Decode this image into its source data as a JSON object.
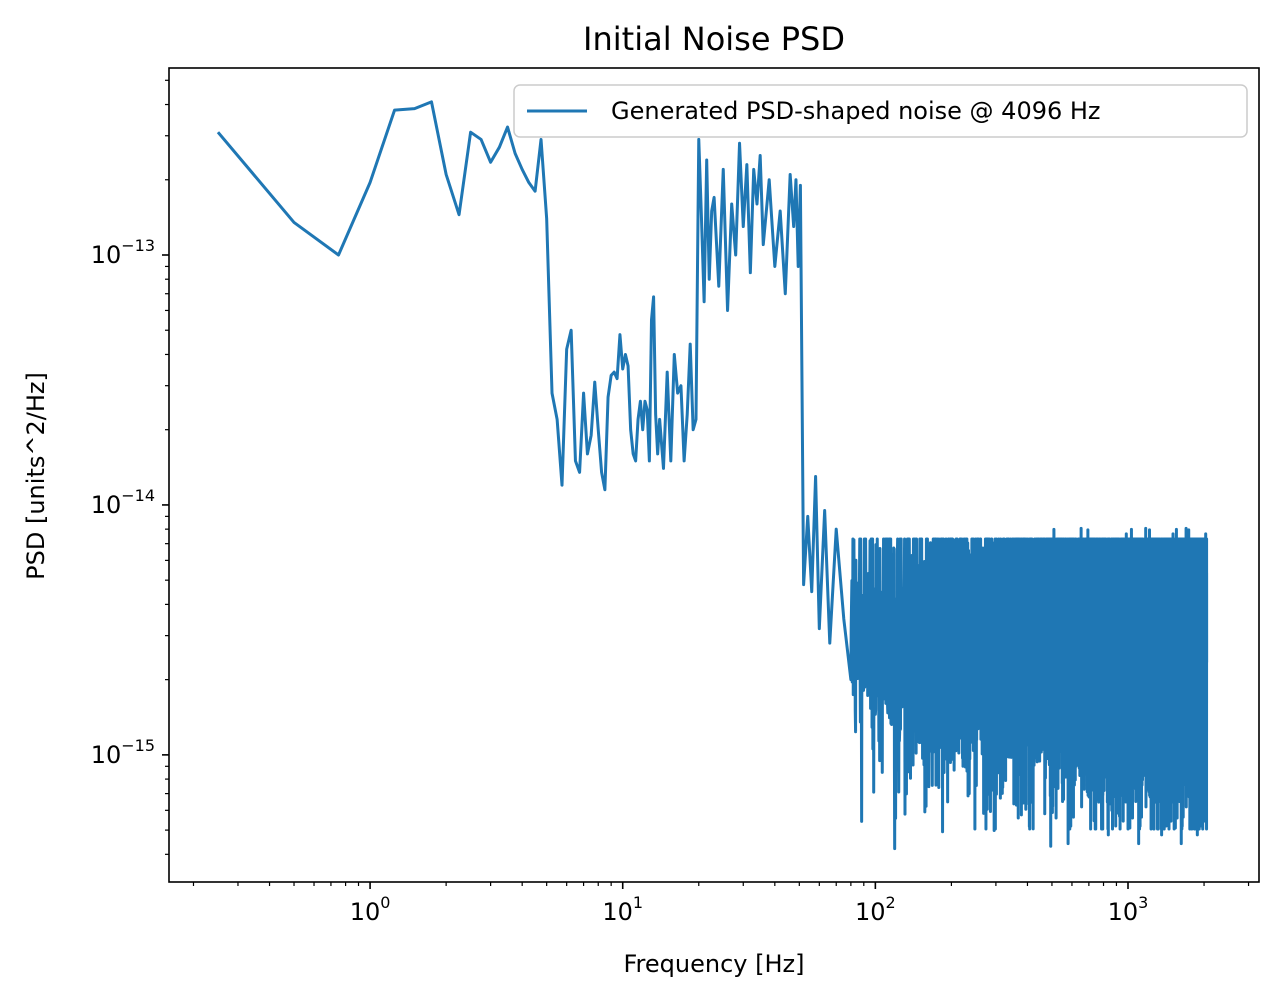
{
  "chart_data": {
    "type": "line",
    "title": "Initial Noise PSD",
    "xlabel": "Frequency [Hz]",
    "ylabel": "PSD [units^2/Hz]",
    "xscale": "log",
    "yscale": "log",
    "xlim": [
      0.16,
      3300
    ],
    "ylim": [
      3.1e-16,
      5.6e-13
    ],
    "grid": false,
    "legend_position": "top-right",
    "x_ticks": [
      {
        "value": 1,
        "base": "10",
        "exp": "0"
      },
      {
        "value": 10,
        "base": "10",
        "exp": "1"
      },
      {
        "value": 100,
        "base": "10",
        "exp": "2"
      },
      {
        "value": 1000,
        "base": "10",
        "exp": "3"
      }
    ],
    "y_ticks": [
      {
        "value": 1e-13,
        "base": "10",
        "exp": "−13"
      },
      {
        "value": 1e-14,
        "base": "10",
        "exp": "−14"
      },
      {
        "value": 1e-15,
        "base": "10",
        "exp": "−15"
      }
    ],
    "series": [
      {
        "name": "Generated PSD-shaped noise @ 4096 Hz",
        "color": "#1f77b4",
        "x": [
          0.25,
          0.5,
          0.75,
          1.0,
          1.25,
          1.5,
          1.75,
          2.0,
          2.25,
          2.5,
          2.75,
          3.0,
          3.25,
          3.5,
          3.75,
          4.0,
          4.25,
          4.5,
          4.75,
          5.0,
          5.25,
          5.5,
          5.75,
          6.0,
          6.25,
          6.5,
          6.75,
          7.0,
          7.25,
          7.5,
          7.75,
          8.0,
          8.25,
          8.5,
          8.75,
          9.0,
          9.25,
          9.5,
          9.75,
          10.0,
          10.25,
          10.5,
          10.75,
          11.0,
          11.25,
          11.5,
          11.75,
          12.0,
          12.25,
          12.5,
          12.75,
          13.0,
          13.25,
          13.5,
          13.75,
          14.0,
          14.5,
          15.0,
          15.5,
          16.0,
          16.5,
          17.0,
          17.5,
          18.0,
          18.5,
          19.0,
          19.5,
          20.0,
          20.5,
          21.0,
          21.5,
          22.0,
          22.5,
          23.0,
          24.0,
          25.0,
          26.0,
          27.0,
          28.0,
          29.0,
          30.0,
          31.0,
          32.0,
          33.0,
          34.0,
          35.0,
          36.0,
          38.0,
          40.0,
          42.0,
          44.0,
          46.0,
          47.5,
          48.5,
          49.5,
          50.5,
          52.0,
          54.0,
          56.0,
          58.0,
          60.0,
          63.0,
          66.0,
          70.0,
          75.0,
          80.0
        ],
        "y": [
          3.1e-13,
          1.35e-13,
          1e-13,
          1.95e-13,
          3.8e-13,
          3.85e-13,
          4.1e-13,
          2.1e-13,
          1.45e-13,
          3.1e-13,
          2.9e-13,
          2.35e-13,
          2.7e-13,
          3.25e-13,
          2.55e-13,
          2.2e-13,
          1.95e-13,
          1.8e-13,
          2.9e-13,
          1.4e-13,
          2.8e-14,
          2.2e-14,
          1.2e-14,
          4.2e-14,
          5e-14,
          1.5e-14,
          1.35e-14,
          2.8e-14,
          1.6e-14,
          1.9e-14,
          3.1e-14,
          2e-14,
          1.35e-14,
          1.15e-14,
          2.7e-14,
          3.3e-14,
          3.4e-14,
          3.2e-14,
          4.8e-14,
          3.5e-14,
          4e-14,
          3.6e-14,
          2e-14,
          1.6e-14,
          1.5e-14,
          2.2e-14,
          2.6e-14,
          2e-14,
          2.6e-14,
          2.4e-14,
          1.5e-14,
          5.5e-14,
          6.8e-14,
          2.3e-14,
          1.6e-14,
          2.2e-14,
          1.4e-14,
          3.4e-14,
          1.5e-14,
          4e-14,
          2.8e-14,
          3e-14,
          1.5e-14,
          2.3e-14,
          4.4e-14,
          2e-14,
          2.2e-14,
          2.9e-13,
          1.4e-13,
          6.5e-14,
          2.4e-13,
          8e-14,
          1.5e-13,
          1.7e-13,
          7.5e-14,
          2.2e-13,
          6e-14,
          1.6e-13,
          1e-13,
          2.8e-13,
          1.3e-13,
          2.3e-13,
          8.5e-14,
          2.2e-13,
          1.6e-13,
          2.5e-13,
          1.1e-13,
          2e-13,
          9e-14,
          1.5e-13,
          7e-14,
          2.1e-13,
          1.3e-13,
          2e-13,
          9e-14,
          1.9e-13,
          4.8e-15,
          9e-15,
          4.5e-15,
          1.3e-14,
          3.2e-15,
          9.5e-15,
          2.8e-15,
          8e-15,
          3.5e-15,
          2e-15
        ],
        "noise_floor": {
          "x_start": 80,
          "x_end": 2048,
          "step": 0.25,
          "median": 2.9e-15,
          "min": 4.2e-16,
          "max": 8.2e-15
        }
      }
    ]
  }
}
